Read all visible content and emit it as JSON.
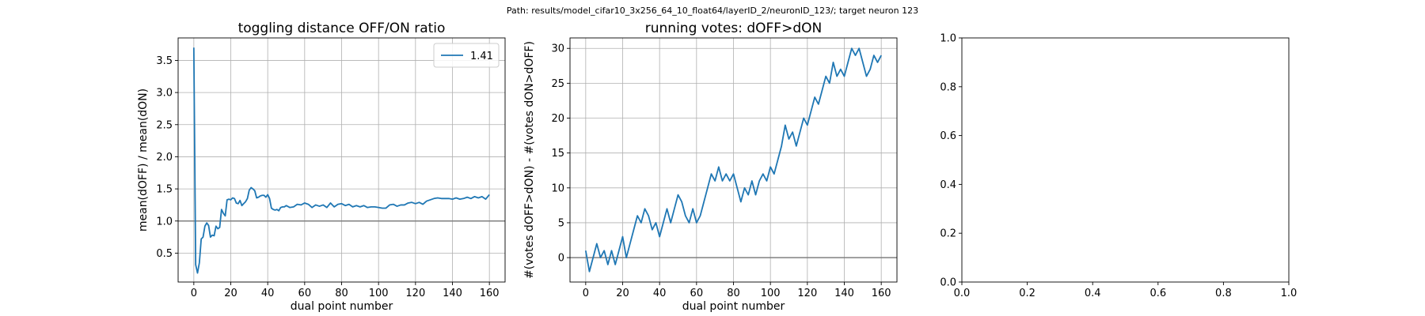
{
  "suptitle": "Path: results/model_cifar10_3x256_64_10_float64/layerID_2/neuronID_123/; target neuron 123",
  "chart_data": [
    {
      "type": "line",
      "title": "toggling distance OFF/ON ratio",
      "xlabel": "dual point number",
      "ylabel": "mean(dOFF) / mean(dON)",
      "xlim": [
        -8.5,
        168.5
      ],
      "ylim": [
        0.05,
        3.85
      ],
      "xticks": [
        0,
        20,
        40,
        60,
        80,
        100,
        120,
        140,
        160
      ],
      "yticks": [
        0.5,
        1.0,
        1.5,
        2.0,
        2.5,
        3.0,
        3.5
      ],
      "ytick_labels": [
        "0.5",
        "1.0",
        "1.5",
        "2.0",
        "2.5",
        "3.0",
        "3.5"
      ],
      "grid": true,
      "legend": {
        "position": "upper-right"
      },
      "hline": 1.0,
      "series": [
        {
          "name": "1.41",
          "color": "#1f77b4",
          "x": [
            0,
            1,
            2,
            3,
            4,
            5,
            6,
            7,
            8,
            9,
            10,
            11,
            12,
            13,
            14,
            15,
            16,
            17,
            18,
            19,
            20,
            21,
            22,
            23,
            24,
            25,
            26,
            27,
            28,
            29,
            30,
            31,
            32,
            33,
            34,
            35,
            36,
            37,
            38,
            39,
            40,
            41,
            42,
            43,
            44,
            45,
            46,
            47,
            48,
            49,
            50,
            52,
            54,
            56,
            58,
            60,
            62,
            64,
            66,
            68,
            70,
            72,
            74,
            76,
            78,
            80,
            82,
            84,
            86,
            88,
            90,
            92,
            94,
            96,
            98,
            100,
            102,
            104,
            106,
            108,
            110,
            112,
            114,
            116,
            118,
            120,
            122,
            124,
            126,
            128,
            130,
            132,
            134,
            136,
            138,
            140,
            142,
            144,
            146,
            148,
            150,
            152,
            154,
            156,
            158,
            160
          ],
          "values": [
            3.7,
            0.32,
            0.19,
            0.35,
            0.72,
            0.75,
            0.92,
            0.97,
            0.93,
            0.75,
            0.78,
            0.77,
            0.92,
            0.88,
            0.9,
            1.18,
            1.12,
            1.08,
            1.33,
            1.34,
            1.33,
            1.36,
            1.35,
            1.28,
            1.27,
            1.32,
            1.24,
            1.27,
            1.3,
            1.35,
            1.48,
            1.52,
            1.5,
            1.47,
            1.36,
            1.37,
            1.39,
            1.4,
            1.4,
            1.37,
            1.41,
            1.35,
            1.2,
            1.18,
            1.17,
            1.18,
            1.16,
            1.21,
            1.22,
            1.22,
            1.24,
            1.21,
            1.22,
            1.26,
            1.25,
            1.28,
            1.26,
            1.21,
            1.25,
            1.23,
            1.25,
            1.21,
            1.28,
            1.22,
            1.26,
            1.27,
            1.24,
            1.26,
            1.22,
            1.24,
            1.22,
            1.24,
            1.21,
            1.22,
            1.22,
            1.21,
            1.2,
            1.2,
            1.25,
            1.26,
            1.23,
            1.25,
            1.25,
            1.28,
            1.29,
            1.27,
            1.29,
            1.26,
            1.31,
            1.33,
            1.35,
            1.36,
            1.35,
            1.35,
            1.35,
            1.34,
            1.36,
            1.34,
            1.35,
            1.37,
            1.35,
            1.38,
            1.36,
            1.38,
            1.34,
            1.41
          ]
        }
      ]
    },
    {
      "type": "line",
      "title": "running votes: dOFF>dON",
      "xlabel": "dual point number",
      "ylabel": "#(votes dOFF>dON) - #(votes dON>dOFF)",
      "xlim": [
        -8.5,
        168.5
      ],
      "ylim": [
        -3.5,
        31.5
      ],
      "xticks": [
        0,
        20,
        40,
        60,
        80,
        100,
        120,
        140,
        160
      ],
      "yticks": [
        0,
        5,
        10,
        15,
        20,
        25,
        30
      ],
      "grid": true,
      "hline": 0,
      "series": [
        {
          "color": "#1f77b4",
          "x": [
            0,
            2,
            4,
            6,
            8,
            10,
            12,
            14,
            16,
            18,
            20,
            22,
            24,
            26,
            28,
            30,
            32,
            34,
            36,
            38,
            40,
            42,
            44,
            46,
            48,
            50,
            52,
            54,
            56,
            58,
            60,
            62,
            64,
            66,
            68,
            70,
            72,
            74,
            76,
            78,
            80,
            82,
            84,
            86,
            88,
            90,
            92,
            94,
            96,
            98,
            100,
            102,
            104,
            106,
            108,
            110,
            112,
            114,
            116,
            118,
            120,
            122,
            124,
            126,
            128,
            130,
            132,
            134,
            136,
            138,
            140,
            142,
            144,
            146,
            148,
            150,
            152,
            154,
            156,
            158,
            160
          ],
          "values": [
            1,
            -2,
            0,
            2,
            0,
            1,
            -1,
            1,
            -1,
            1,
            3,
            0,
            2,
            4,
            6,
            5,
            7,
            6,
            4,
            5,
            3,
            5,
            7,
            5,
            7,
            9,
            8,
            6,
            5,
            7,
            5,
            6,
            8,
            10,
            12,
            11,
            13,
            11,
            12,
            11,
            12,
            10,
            8,
            10,
            9,
            11,
            9,
            11,
            12,
            11,
            13,
            12,
            14,
            16,
            19,
            17,
            18,
            16,
            18,
            20,
            19,
            21,
            23,
            22,
            24,
            26,
            25,
            28,
            26,
            27,
            26,
            28,
            30,
            29,
            30,
            28,
            26,
            27,
            29,
            28,
            29
          ]
        }
      ]
    },
    {
      "type": "line",
      "title": "",
      "xlim": [
        0,
        1
      ],
      "ylim": [
        0,
        1
      ],
      "xticks": [
        0.0,
        0.2,
        0.4,
        0.6,
        0.8,
        1.0
      ],
      "yticks": [
        0.0,
        0.2,
        0.4,
        0.6,
        0.8,
        1.0
      ],
      "xtick_labels": [
        "0.0",
        "0.2",
        "0.4",
        "0.6",
        "0.8",
        "1.0"
      ],
      "ytick_labels": [
        "0.0",
        "0.2",
        "0.4",
        "0.6",
        "0.8",
        "1.0"
      ],
      "grid": false,
      "series": []
    }
  ]
}
